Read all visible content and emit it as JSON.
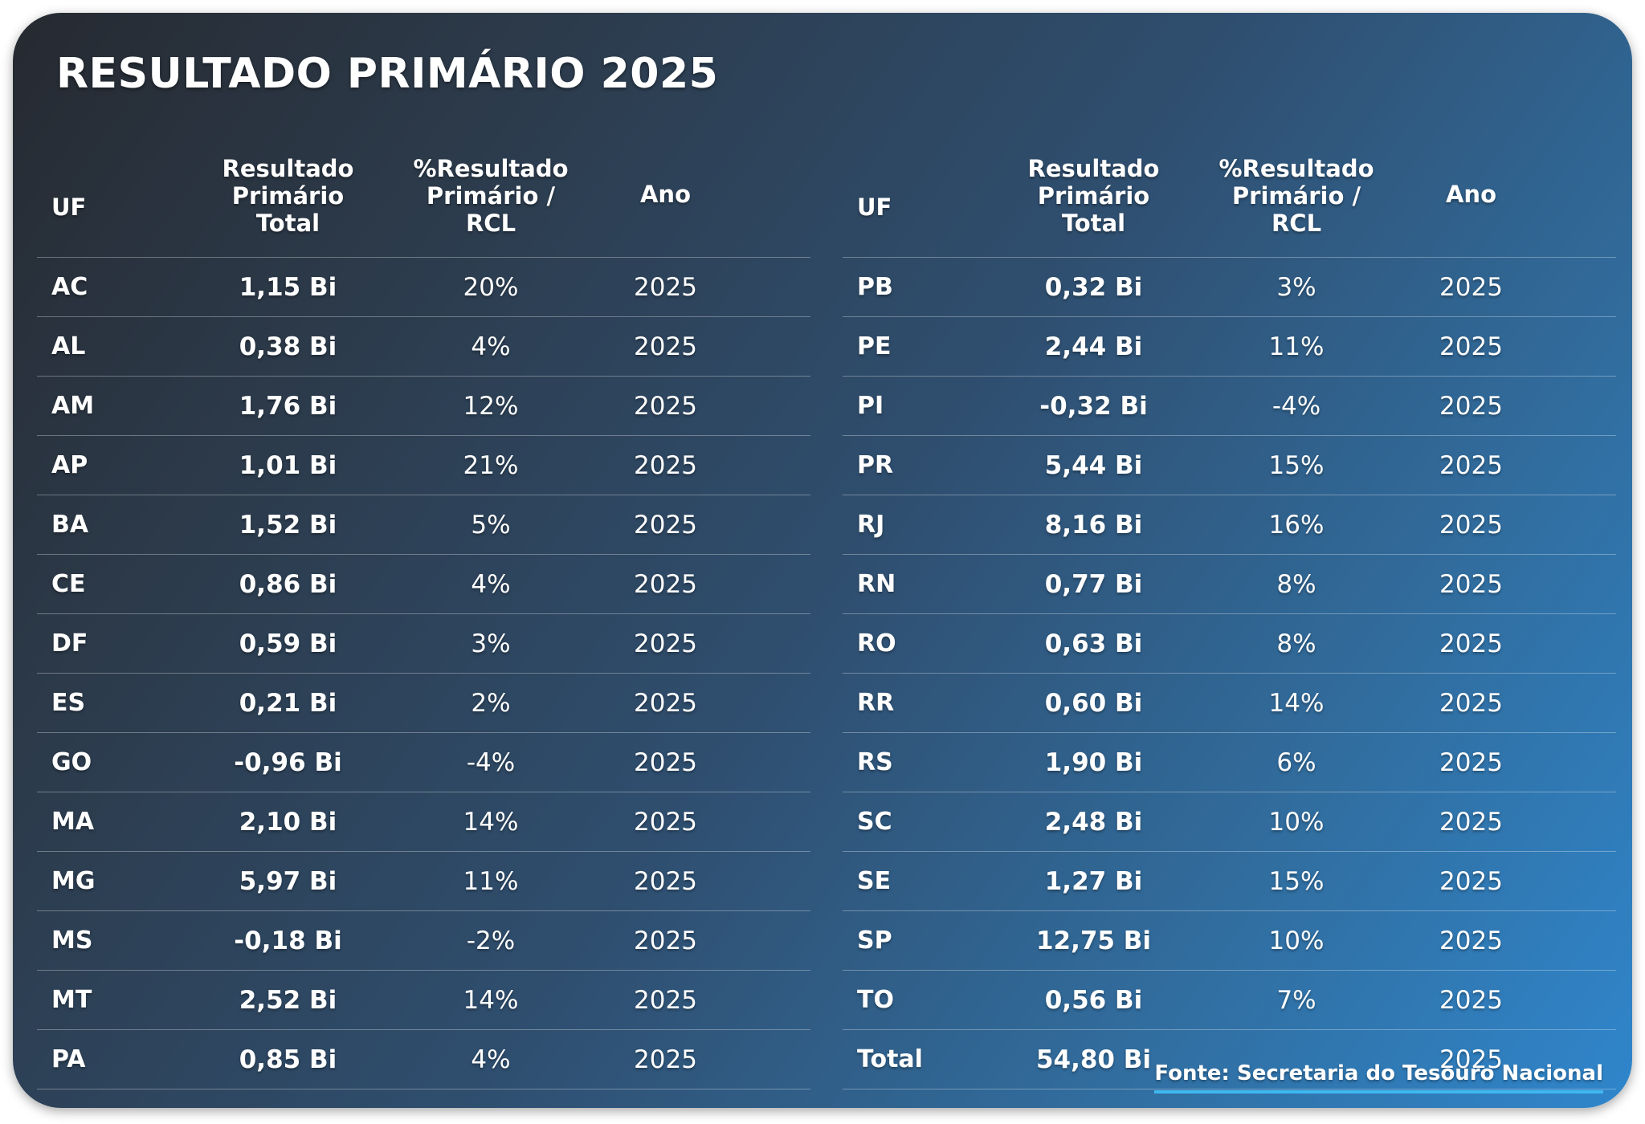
{
  "title": "RESULTADO PRIMÁRIO 2025",
  "headers": {
    "uf": "UF",
    "resultado": [
      "Resultado",
      "Primário",
      "Total"
    ],
    "percentual": [
      "%Resultado",
      "Primário /",
      "RCL"
    ],
    "ano": "Ano"
  },
  "left_rows": [
    {
      "uf": "AC",
      "resultado": "1,15 Bi",
      "percentual": "20%",
      "ano": "2025"
    },
    {
      "uf": "AL",
      "resultado": "0,38 Bi",
      "percentual": "4%",
      "ano": "2025"
    },
    {
      "uf": "AM",
      "resultado": "1,76 Bi",
      "percentual": "12%",
      "ano": "2025"
    },
    {
      "uf": "AP",
      "resultado": "1,01 Bi",
      "percentual": "21%",
      "ano": "2025"
    },
    {
      "uf": "BA",
      "resultado": "1,52 Bi",
      "percentual": "5%",
      "ano": "2025"
    },
    {
      "uf": "CE",
      "resultado": "0,86 Bi",
      "percentual": "4%",
      "ano": "2025"
    },
    {
      "uf": "DF",
      "resultado": "0,59 Bi",
      "percentual": "3%",
      "ano": "2025"
    },
    {
      "uf": "ES",
      "resultado": "0,21 Bi",
      "percentual": "2%",
      "ano": "2025"
    },
    {
      "uf": "GO",
      "resultado": "-0,96 Bi",
      "percentual": "-4%",
      "ano": "2025"
    },
    {
      "uf": "MA",
      "resultado": "2,10 Bi",
      "percentual": "14%",
      "ano": "2025"
    },
    {
      "uf": "MG",
      "resultado": "5,97 Bi",
      "percentual": "11%",
      "ano": "2025"
    },
    {
      "uf": "MS",
      "resultado": "-0,18 Bi",
      "percentual": "-2%",
      "ano": "2025"
    },
    {
      "uf": "MT",
      "resultado": "2,52 Bi",
      "percentual": "14%",
      "ano": "2025"
    },
    {
      "uf": "PA",
      "resultado": "0,85 Bi",
      "percentual": "4%",
      "ano": "2025"
    }
  ],
  "right_rows": [
    {
      "uf": "PB",
      "resultado": "0,32 Bi",
      "percentual": "3%",
      "ano": "2025"
    },
    {
      "uf": "PE",
      "resultado": "2,44 Bi",
      "percentual": "11%",
      "ano": "2025"
    },
    {
      "uf": "PI",
      "resultado": "-0,32 Bi",
      "percentual": "-4%",
      "ano": "2025"
    },
    {
      "uf": "PR",
      "resultado": "5,44 Bi",
      "percentual": "15%",
      "ano": "2025"
    },
    {
      "uf": "RJ",
      "resultado": "8,16 Bi",
      "percentual": "16%",
      "ano": "2025"
    },
    {
      "uf": "RN",
      "resultado": "0,77 Bi",
      "percentual": "8%",
      "ano": "2025"
    },
    {
      "uf": "RO",
      "resultado": "0,63 Bi",
      "percentual": "8%",
      "ano": "2025"
    },
    {
      "uf": "RR",
      "resultado": "0,60 Bi",
      "percentual": "14%",
      "ano": "2025"
    },
    {
      "uf": "RS",
      "resultado": "1,90 Bi",
      "percentual": "6%",
      "ano": "2025"
    },
    {
      "uf": "SC",
      "resultado": "2,48 Bi",
      "percentual": "10%",
      "ano": "2025"
    },
    {
      "uf": "SE",
      "resultado": "1,27 Bi",
      "percentual": "15%",
      "ano": "2025"
    },
    {
      "uf": "SP",
      "resultado": "12,75 Bi",
      "percentual": "10%",
      "ano": "2025"
    },
    {
      "uf": "TO",
      "resultado": "0,56 Bi",
      "percentual": "7%",
      "ano": "2025"
    },
    {
      "uf": "Total",
      "resultado": "54,80 Bi",
      "percentual": "",
      "ano": "2025"
    }
  ],
  "source": "Fonte: Secretaria do Tesouro Nacional",
  "colors": {
    "gradient_start": "#262a31",
    "gradient_end": "#2f86cc",
    "text": "#ffffff",
    "source_underline": "#3fb8f0"
  }
}
